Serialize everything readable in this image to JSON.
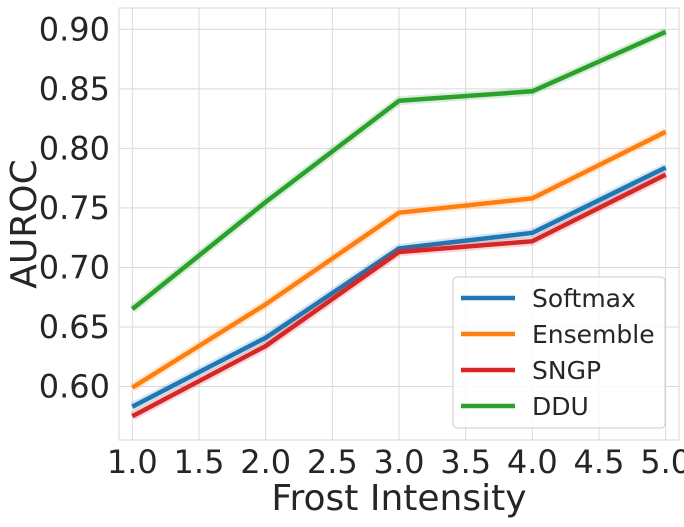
{
  "chart_data": {
    "type": "line",
    "title": "",
    "xlabel": "Frost Intensity",
    "ylabel": "AUROC",
    "xlim": [
      0.9,
      5.1
    ],
    "ylim": [
      0.555,
      0.918
    ],
    "x_ticks": [
      1.0,
      1.5,
      2.0,
      2.5,
      3.0,
      3.5,
      4.0,
      4.5,
      5.0
    ],
    "x_tick_labels": [
      "1.0",
      "1.5",
      "2.0",
      "2.5",
      "3.0",
      "3.5",
      "4.0",
      "4.5",
      "5.0"
    ],
    "y_ticks": [
      0.6,
      0.65,
      0.7,
      0.75,
      0.8,
      0.85,
      0.9
    ],
    "y_tick_labels": [
      "0.60",
      "0.65",
      "0.70",
      "0.75",
      "0.80",
      "0.85",
      "0.90"
    ],
    "grid": true,
    "legend_position": "lower-right",
    "x": [
      1.0,
      2.0,
      3.0,
      4.0,
      5.0
    ],
    "series": [
      {
        "name": "Softmax",
        "color": "#1f77b4",
        "values": [
          0.583,
          0.641,
          0.716,
          0.729,
          0.784
        ]
      },
      {
        "name": "Ensemble",
        "color": "#ff7f0e",
        "values": [
          0.599,
          0.669,
          0.746,
          0.758,
          0.814
        ]
      },
      {
        "name": "SNGP",
        "color": "#d62728",
        "values": [
          0.575,
          0.634,
          0.713,
          0.722,
          0.778
        ]
      },
      {
        "name": "DDU",
        "color": "#2ca02c",
        "values": [
          0.665,
          0.755,
          0.84,
          0.848,
          0.898
        ]
      }
    ]
  }
}
